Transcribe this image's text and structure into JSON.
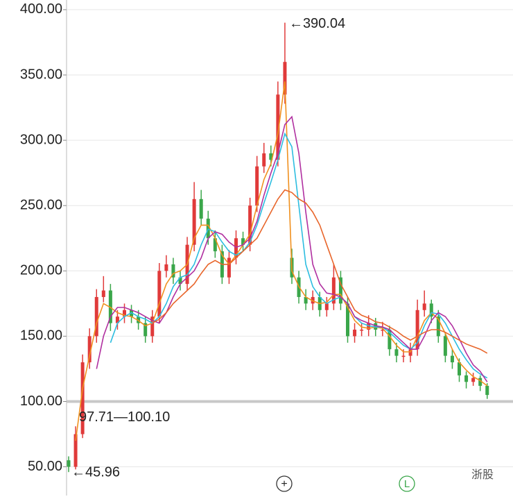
{
  "chart_data": {
    "type": "candlestick",
    "up_color": "#e03a3a",
    "down_color": "#3aa64a",
    "ylim": [
      28,
      407.4
    ],
    "yticks": [
      {
        "value": 50,
        "label": "50.00"
      },
      {
        "value": 100,
        "label": "100.00"
      },
      {
        "value": 150,
        "label": "150.00"
      },
      {
        "value": 200,
        "label": "200.00"
      },
      {
        "value": 250,
        "label": "250.00"
      },
      {
        "value": 300,
        "label": "300.00"
      },
      {
        "value": 350,
        "label": "350.00"
      },
      {
        "value": 400,
        "label": "400.00"
      }
    ],
    "grid": true,
    "highlight_line": 100,
    "xlim": [
      0,
      64
    ],
    "open": [
      55,
      50,
      75,
      130,
      150,
      180,
      185,
      160,
      165,
      170,
      165,
      160,
      150,
      165,
      200,
      205,
      195,
      190,
      220,
      255,
      240,
      225,
      215,
      195,
      210,
      225,
      220,
      250,
      280,
      290,
      285,
      335,
      210,
      195,
      180,
      175,
      180,
      170,
      175,
      195,
      175,
      150,
      155,
      155,
      160,
      155,
      155,
      140,
      135,
      135,
      140,
      170,
      175,
      165,
      150,
      135,
      130,
      120,
      115,
      118,
      112
    ],
    "high": [
      58,
      81,
      136,
      156,
      186,
      196,
      190,
      170,
      175,
      174,
      170,
      165,
      170,
      206,
      212,
      210,
      200,
      226,
      268,
      262,
      246,
      231,
      220,
      216,
      231,
      230,
      256,
      288,
      298,
      296,
      345,
      390.04,
      217,
      200,
      186,
      185,
      184,
      180,
      205,
      200,
      180,
      160,
      160,
      166,
      164,
      161,
      158,
      145,
      140,
      145,
      178,
      185,
      178,
      170,
      153,
      140,
      133,
      123,
      122,
      120,
      114
    ],
    "low": [
      45.96,
      48,
      72,
      125,
      145,
      176,
      154,
      155,
      160,
      160,
      155,
      145,
      145,
      160,
      195,
      190,
      185,
      185,
      215,
      235,
      220,
      210,
      190,
      190,
      205,
      215,
      215,
      245,
      275,
      280,
      280,
      328,
      190,
      175,
      170,
      170,
      165,
      165,
      170,
      170,
      145,
      145,
      150,
      150,
      150,
      150,
      135,
      130,
      130,
      130,
      135,
      165,
      160,
      145,
      130,
      125,
      115,
      110,
      112,
      108,
      102
    ],
    "close": [
      50,
      75,
      130,
      150,
      180,
      185,
      160,
      165,
      170,
      165,
      160,
      150,
      165,
      200,
      205,
      195,
      190,
      220,
      255,
      240,
      225,
      215,
      195,
      210,
      225,
      220,
      250,
      280,
      290,
      285,
      335,
      360,
      195,
      180,
      175,
      180,
      170,
      175,
      195,
      175,
      150,
      155,
      155,
      160,
      155,
      155,
      140,
      135,
      135,
      140,
      170,
      175,
      165,
      150,
      135,
      130,
      120,
      115,
      118,
      112,
      105
    ],
    "series": [
      {
        "color": "#f0901e",
        "values": [
          null,
          70,
          110,
          135,
          160,
          175,
          172,
          168,
          166,
          165,
          162,
          158,
          160,
          175,
          190,
          198,
          200,
          205,
          225,
          235,
          235,
          225,
          212,
          205,
          212,
          220,
          228,
          250,
          270,
          282,
          305,
          345,
          200,
          188,
          180,
          177,
          175,
          176,
          182,
          182,
          172,
          162,
          157,
          156,
          157,
          156,
          150,
          143,
          138,
          138,
          150,
          162,
          168,
          163,
          152,
          140,
          130,
          124,
          119,
          116,
          112
        ]
      },
      {
        "color": "#2cbde0",
        "values": [
          null,
          null,
          null,
          null,
          null,
          null,
          145,
          160,
          165,
          168,
          165,
          163,
          160,
          165,
          175,
          188,
          195,
          197,
          205,
          220,
          232,
          230,
          222,
          215,
          212,
          215,
          222,
          235,
          252,
          268,
          285,
          305,
          295,
          250,
          205,
          188,
          180,
          175,
          178,
          180,
          175,
          165,
          160,
          158,
          157,
          157,
          153,
          148,
          143,
          140,
          145,
          158,
          168,
          167,
          160,
          150,
          140,
          132,
          125,
          121,
          118
        ]
      },
      {
        "color": "#b02fa0",
        "values": [
          null,
          null,
          null,
          null,
          125,
          150,
          165,
          172,
          172,
          170,
          168,
          165,
          162,
          160,
          168,
          180,
          190,
          195,
          200,
          210,
          225,
          230,
          228,
          222,
          218,
          220,
          225,
          238,
          258,
          275,
          290,
          312,
          318,
          290,
          245,
          205,
          190,
          183,
          182,
          180,
          175,
          165,
          162,
          160,
          158,
          157,
          155,
          150,
          145,
          140,
          140,
          150,
          162,
          168,
          165,
          158,
          148,
          137,
          128,
          123,
          115
        ]
      },
      {
        "color": "#e8652a",
        "values": [
          null,
          null,
          null,
          null,
          null,
          null,
          null,
          null,
          null,
          null,
          null,
          null,
          160,
          163,
          168,
          175,
          180,
          185,
          190,
          198,
          205,
          208,
          205,
          205,
          210,
          215,
          220,
          225,
          235,
          245,
          255,
          262,
          260,
          255,
          252,
          245,
          235,
          220,
          205,
          190,
          180,
          170,
          166,
          164,
          161,
          160,
          157,
          154,
          150,
          147,
          150,
          153,
          155,
          155,
          153,
          150,
          147,
          144,
          142,
          140,
          137
        ]
      }
    ],
    "annotations": {
      "high": "←390.04",
      "mid": "97.71—100.10",
      "low": "←45.96"
    },
    "buttons": {
      "add": "+",
      "mode": "L"
    },
    "watermark": "浙股"
  }
}
